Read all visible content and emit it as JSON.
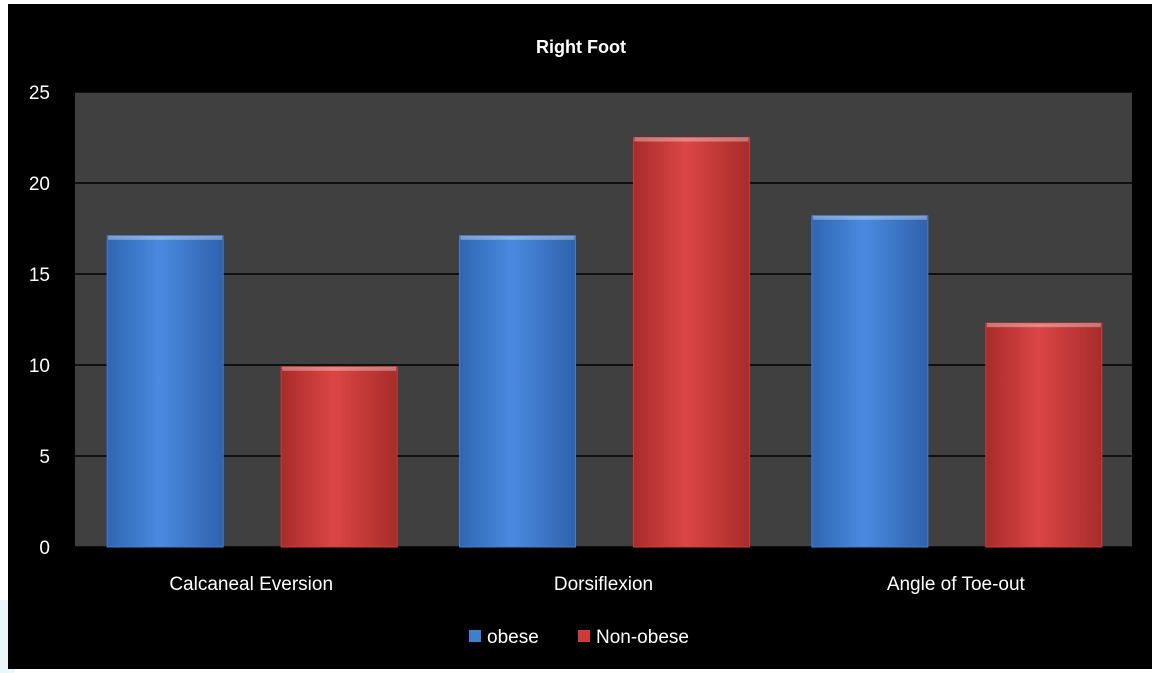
{
  "chart_data": {
    "type": "bar",
    "title": "Right Foot",
    "xlabel": "",
    "ylabel": "",
    "categories": [
      "Calcaneal Eversion",
      "Dorsiflexion",
      "Angle of Toe-out"
    ],
    "series": [
      {
        "name": "obese",
        "values": [
          17.1,
          17.1,
          18.2
        ],
        "color": "#3f7fd1"
      },
      {
        "name": "Non-obese",
        "values": [
          9.9,
          22.5,
          12.3
        ],
        "color": "#d03b39"
      }
    ],
    "ylim": [
      0,
      25
    ],
    "yticks": [
      "0",
      "5",
      "10",
      "15",
      "20",
      "25"
    ],
    "grid": true,
    "legend_position": "bottom",
    "colors": {
      "background": "#000000",
      "plot_area": "#404040",
      "gridline": "#000000",
      "text": "#ffffff"
    }
  }
}
